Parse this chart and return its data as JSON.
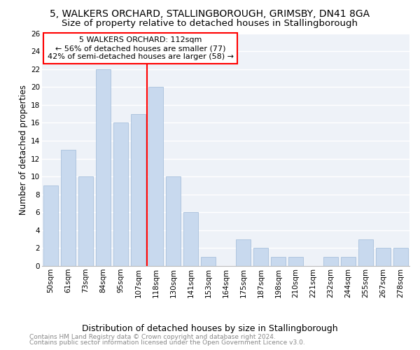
{
  "title": "5, WALKERS ORCHARD, STALLINGBOROUGH, GRIMSBY, DN41 8GA",
  "subtitle": "Size of property relative to detached houses in Stallingborough",
  "xlabel": "Distribution of detached houses by size in Stallingborough",
  "ylabel": "Number of detached properties",
  "footnote1": "Contains HM Land Registry data © Crown copyright and database right 2024.",
  "footnote2": "Contains public sector information licensed under the Open Government Licence v3.0.",
  "bar_labels": [
    "50sqm",
    "61sqm",
    "73sqm",
    "84sqm",
    "95sqm",
    "107sqm",
    "118sqm",
    "130sqm",
    "141sqm",
    "153sqm",
    "164sqm",
    "175sqm",
    "187sqm",
    "198sqm",
    "210sqm",
    "221sqm",
    "232sqm",
    "244sqm",
    "255sqm",
    "267sqm",
    "278sqm"
  ],
  "bar_values": [
    9,
    13,
    10,
    22,
    16,
    17,
    20,
    10,
    6,
    1,
    0,
    3,
    2,
    1,
    1,
    0,
    1,
    1,
    3,
    2,
    2
  ],
  "bar_color": "#c8d9ee",
  "bar_edge_color": "#a8c0dc",
  "annotation_line0": "5 WALKERS ORCHARD: 112sqm",
  "annotation_line1": "← 56% of detached houses are smaller (77)",
  "annotation_line2": "42% of semi-detached houses are larger (58) →",
  "annotation_box_color": "white",
  "annotation_box_edge_color": "red",
  "vline_color": "red",
  "vline_x_index": 5.5,
  "ylim": [
    0,
    26
  ],
  "yticks": [
    0,
    2,
    4,
    6,
    8,
    10,
    12,
    14,
    16,
    18,
    20,
    22,
    24,
    26
  ],
  "bg_color": "#eef2f8",
  "grid_color": "white",
  "title_fontsize": 10,
  "subtitle_fontsize": 9.5,
  "xlabel_fontsize": 9,
  "ylabel_fontsize": 8.5,
  "annot_fontsize": 8,
  "tick_fontsize": 7.5,
  "footnote_fontsize": 6.5
}
